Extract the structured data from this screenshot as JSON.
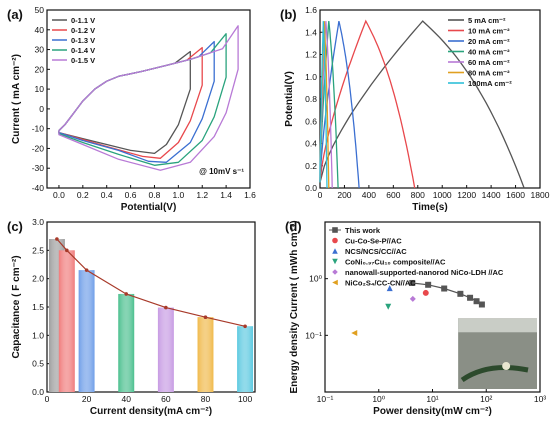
{
  "chart_data": [
    {
      "panel": "(a)",
      "type": "line",
      "xlabel": "Potential(V)",
      "ylabel": "Current ( mA cm⁻²)",
      "xlim": [
        -0.1,
        1.6
      ],
      "ylim": [
        -40,
        50
      ],
      "xticks": [
        "0.0",
        "0.2",
        "0.4",
        "0.6",
        "0.8",
        "1.0",
        "1.2",
        "1.4",
        "1.6"
      ],
      "yticks": [
        "-40",
        "-30",
        "-20",
        "-10",
        "0",
        "10",
        "20",
        "30",
        "40",
        "50"
      ],
      "annotation": "@ 10mV s⁻¹",
      "legend_position": "top-left",
      "series": [
        {
          "name": "0-1.1 V",
          "color": "#555555",
          "vmax": 1.1,
          "ipeak": 29,
          "cathodic": [
            [
              1.1,
              10
            ],
            [
              1.0,
              -8
            ],
            [
              0.9,
              -18
            ],
            [
              0.8,
              -22.5
            ],
            [
              0.6,
              -21
            ],
            [
              0.4,
              -18
            ],
            [
              0.2,
              -15
            ],
            [
              0.0,
              -12
            ]
          ]
        },
        {
          "name": "0-1.2 V",
          "color": "#e8484c",
          "vmax": 1.2,
          "ipeak": 31,
          "cathodic": [
            [
              1.2,
              12
            ],
            [
              1.1,
              -6
            ],
            [
              1.0,
              -17
            ],
            [
              0.85,
              -25
            ],
            [
              0.7,
              -24
            ],
            [
              0.4,
              -19
            ],
            [
              0.2,
              -15.5
            ],
            [
              0.0,
              -12
            ]
          ]
        },
        {
          "name": "0-1.3 V",
          "color": "#3b6fd1",
          "vmax": 1.3,
          "ipeak": 34,
          "cathodic": [
            [
              1.3,
              14
            ],
            [
              1.2,
              -5
            ],
            [
              1.1,
              -17
            ],
            [
              0.9,
              -27
            ],
            [
              0.75,
              -26.5
            ],
            [
              0.5,
              -21
            ],
            [
              0.2,
              -16
            ],
            [
              0.0,
              -12
            ]
          ]
        },
        {
          "name": "0-1.4 V",
          "color": "#2aa37d",
          "vmax": 1.4,
          "ipeak": 38,
          "cathodic": [
            [
              1.4,
              16
            ],
            [
              1.3,
              -4
            ],
            [
              1.2,
              -16
            ],
            [
              1.0,
              -27
            ],
            [
              0.8,
              -28.5
            ],
            [
              0.5,
              -23
            ],
            [
              0.2,
              -17
            ],
            [
              0.0,
              -12.5
            ]
          ]
        },
        {
          "name": "0-1.5 V",
          "color": "#b87ad6",
          "vmax": 1.5,
          "ipeak": 42,
          "cathodic": [
            [
              1.5,
              20
            ],
            [
              1.4,
              -2
            ],
            [
              1.3,
              -14
            ],
            [
              1.1,
              -27
            ],
            [
              0.85,
              -31
            ],
            [
              0.5,
              -25.5
            ],
            [
              0.2,
              -18
            ],
            [
              0.0,
              -13
            ]
          ]
        }
      ],
      "anodic_base": [
        [
          0.0,
          -11
        ],
        [
          0.05,
          -8
        ],
        [
          0.1,
          -4
        ],
        [
          0.15,
          0
        ],
        [
          0.2,
          4
        ],
        [
          0.3,
          10
        ],
        [
          0.4,
          14
        ],
        [
          0.5,
          16.5
        ],
        [
          0.7,
          19
        ],
        [
          0.9,
          22
        ],
        [
          1.1,
          25
        ],
        [
          1.3,
          29
        ],
        [
          1.5,
          33
        ]
      ]
    },
    {
      "panel": "(b)",
      "type": "line",
      "xlabel": "Time(s)",
      "ylabel": "Potential(V)",
      "xlim": [
        0,
        1800
      ],
      "ylim": [
        0.0,
        1.6
      ],
      "xticks": [
        "0",
        "200",
        "400",
        "600",
        "800",
        "1000",
        "1200",
        "1400",
        "1600",
        "1800"
      ],
      "yticks": [
        "0.0",
        "0.2",
        "0.4",
        "0.6",
        "0.8",
        "1.0",
        "1.2",
        "1.4",
        "1.6"
      ],
      "legend_position": "top-right",
      "series": [
        {
          "name": "5 mA cm⁻²",
          "color": "#555555",
          "tc": 840,
          "td": 1670
        },
        {
          "name": "10 mA cm⁻²",
          "color": "#e8484c",
          "tc": 375,
          "td": 775
        },
        {
          "name": "20 mA cm⁻²",
          "color": "#3b6fd1",
          "tc": 155,
          "td": 320
        },
        {
          "name": "40 mA cm⁻²",
          "color": "#2aa37d",
          "tc": 72,
          "td": 148
        },
        {
          "name": "60 mA cm⁻²",
          "color": "#b87ad6",
          "tc": 48,
          "td": 100
        },
        {
          "name": "80 mA cm⁻²",
          "color": "#e0a020",
          "tc": 35,
          "td": 72
        },
        {
          "name": "100mA cm⁻²",
          "color": "#2fc0d8",
          "tc": 27,
          "td": 57
        }
      ]
    },
    {
      "panel": "(c)",
      "type": "bar",
      "xlabel": "Current density(mA cm⁻²)",
      "ylabel": "Capacitance ( F cm⁻²)",
      "xlim": [
        0,
        105
      ],
      "ylim": [
        0.0,
        3.0
      ],
      "xticks": [
        "0",
        "20",
        "40",
        "60",
        "80",
        "100"
      ],
      "yticks": [
        "0.0",
        "0.5",
        "1.0",
        "1.5",
        "2.0",
        "2.5",
        "3.0"
      ],
      "x": [
        5,
        10,
        20,
        40,
        60,
        80,
        100
      ],
      "values": [
        2.7,
        2.5,
        2.15,
        1.73,
        1.49,
        1.32,
        1.16
      ],
      "colors": [
        "#9e9e9e",
        "#f07c7c",
        "#6f9ee8",
        "#4cc08f",
        "#c79be3",
        "#f0b94a",
        "#5cc9e0"
      ],
      "line_color": "#a83a2a"
    },
    {
      "panel": "(d)",
      "type": "scatter",
      "xlabel": "Power density(mW cm⁻²)",
      "ylabel": "Energy density Current ( mWh cm⁻²)",
      "xscale": "log",
      "yscale": "log",
      "xlim": [
        0.1,
        1000
      ],
      "ylim": [
        0.01,
        10
      ],
      "xticks": [
        "10⁻¹",
        "10⁰",
        "10¹",
        "10²",
        "10³"
      ],
      "yticks": [
        "10⁻¹",
        "10⁰"
      ],
      "legend_position": "top-left",
      "series": [
        {
          "name": "This work",
          "color": "#555555",
          "marker": "square",
          "line": true,
          "points": [
            [
              4.2,
              0.84
            ],
            [
              8.3,
              0.78
            ],
            [
              16.5,
              0.67
            ],
            [
              33,
              0.54
            ],
            [
              50,
              0.46
            ],
            [
              66,
              0.4
            ],
            [
              83,
              0.35
            ]
          ]
        },
        {
          "name": "Cu-Co-Se-P//AC",
          "color": "#e8484c",
          "marker": "circle",
          "points": [
            [
              7.5,
              0.56
            ]
          ]
        },
        {
          "name": "NCS/NCS/CC//AC",
          "color": "#3b6fd1",
          "marker": "triangle-up",
          "points": [
            [
              1.6,
              0.68
            ]
          ]
        },
        {
          "name": "CoNi₀.₉₇Cu₁₀ composite//AC",
          "color": "#2aa37d",
          "marker": "triangle-down",
          "points": [
            [
              1.5,
              0.32
            ]
          ]
        },
        {
          "name": "nanowall-supported-nanorod NiCo-LDH //AC",
          "color": "#b87ad6",
          "marker": "diamond",
          "points": [
            [
              4.3,
              0.44
            ]
          ]
        },
        {
          "name": "NiCo₂S₄/CC-CN//AC",
          "color": "#e0a020",
          "marker": "triangle-left",
          "points": [
            [
              0.35,
              0.11
            ]
          ]
        }
      ]
    }
  ]
}
